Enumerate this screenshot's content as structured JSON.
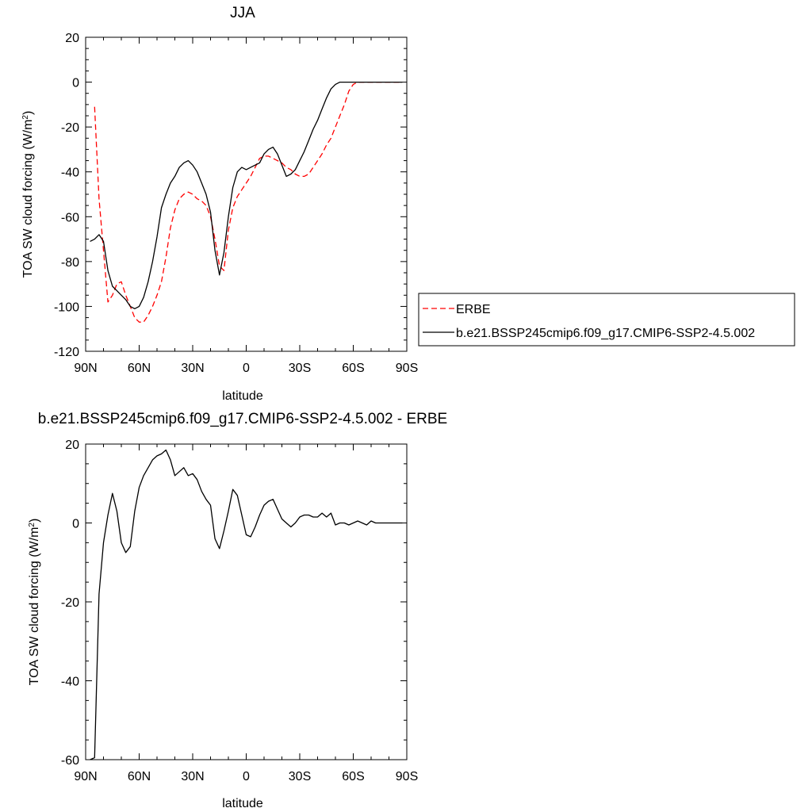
{
  "chart_data": [
    {
      "type": "line",
      "title": "JJA",
      "xlabel": "latitude",
      "ylabel": "TOA SW cloud forcing (W/m",
      "ylabel_sup": "2",
      "ylabel_close": ")",
      "xticks": [
        {
          "lat": 90,
          "label": "90N"
        },
        {
          "lat": 60,
          "label": "60N"
        },
        {
          "lat": 30,
          "label": "30N"
        },
        {
          "lat": 0,
          "label": "0"
        },
        {
          "lat": -30,
          "label": "30S"
        },
        {
          "lat": -60,
          "label": "60S"
        },
        {
          "lat": -90,
          "label": "90S"
        }
      ],
      "xlim": [
        90,
        -90
      ],
      "ylim": [
        -120,
        20
      ],
      "yticks": [
        20,
        0,
        -20,
        -40,
        -60,
        -80,
        -100,
        -120
      ],
      "ytick_labels": [
        "20",
        "0",
        "-20",
        "-40",
        "-60",
        "-80",
        "-100",
        "-120"
      ],
      "grid": false,
      "legend_position": "right",
      "series": [
        {
          "name": "ERBE",
          "color": "#ff0000",
          "dash": "dashed",
          "x": [
            85,
            82.5,
            80,
            77.5,
            75,
            72.5,
            70,
            67.5,
            65,
            62.5,
            60,
            57.5,
            55,
            52.5,
            50,
            47.5,
            45,
            42.5,
            40,
            37.5,
            35,
            32.5,
            30,
            27.5,
            25,
            22.5,
            20,
            17.5,
            15,
            12.5,
            10,
            7.5,
            5,
            2.5,
            0,
            -2.5,
            -5,
            -7.5,
            -10,
            -12.5,
            -15,
            -17.5,
            -20,
            -22.5,
            -25,
            -27.5,
            -30,
            -32.5,
            -35,
            -37.5,
            -40,
            -42.5,
            -45,
            -47.5,
            -50,
            -52.5,
            -55,
            -57.5,
            -60,
            -62.5,
            -65,
            -67.5,
            -70,
            -72.5,
            -75,
            -77.5,
            -80,
            -82.5,
            -85,
            -87.5
          ],
          "y": [
            -11,
            -52,
            -75,
            -98,
            -95,
            -90,
            -89,
            -95,
            -100,
            -105,
            -107,
            -107,
            -104,
            -100,
            -95,
            -89,
            -78,
            -65,
            -57,
            -52,
            -50,
            -49,
            -50,
            -52,
            -53,
            -55,
            -60,
            -70,
            -82,
            -84,
            -66,
            -56,
            -51,
            -48,
            -45,
            -42,
            -38,
            -34,
            -33,
            -33,
            -34,
            -35,
            -36,
            -38,
            -39,
            -41,
            -42,
            -42,
            -41,
            -38,
            -35,
            -32,
            -28,
            -25,
            -20,
            -15,
            -10,
            -4,
            -1,
            0,
            0,
            0,
            0,
            0,
            0,
            0,
            0,
            0,
            0,
            0
          ]
        },
        {
          "name": "b.e21.BSSP245cmip6.f09_g17.CMIP6-SSP2-4.5.002",
          "color": "#000000",
          "dash": "solid",
          "x": [
            87.5,
            85,
            82.5,
            80,
            77.5,
            75,
            72.5,
            70,
            67.5,
            65,
            62.5,
            60,
            57.5,
            55,
            52.5,
            50,
            47.5,
            45,
            42.5,
            40,
            37.5,
            35,
            32.5,
            30,
            27.5,
            25,
            22.5,
            20,
            17.5,
            15,
            12.5,
            10,
            7.5,
            5,
            2.5,
            0,
            -2.5,
            -5,
            -7.5,
            -10,
            -12.5,
            -15,
            -17.5,
            -20,
            -22.5,
            -25,
            -27.5,
            -30,
            -32.5,
            -35,
            -37.5,
            -40,
            -42.5,
            -45,
            -47.5,
            -50,
            -52.5,
            -55,
            -57.5,
            -60,
            -62.5,
            -65,
            -67.5,
            -70,
            -72.5,
            -75,
            -77.5,
            -80,
            -82.5,
            -85,
            -87.5
          ],
          "y": [
            -71,
            -70,
            -68,
            -71,
            -84,
            -91,
            -93,
            -95,
            -97,
            -100,
            -101,
            -100,
            -96,
            -89,
            -80,
            -69,
            -56,
            -50,
            -45,
            -42,
            -38,
            -36,
            -35,
            -37,
            -40,
            -45,
            -50,
            -58,
            -75,
            -86,
            -76,
            -60,
            -47,
            -40,
            -38,
            -39,
            -38,
            -37,
            -36,
            -32,
            -30,
            -29,
            -32,
            -37,
            -42,
            -41,
            -39,
            -35,
            -31,
            -26,
            -21,
            -17,
            -12,
            -7,
            -3,
            -1,
            0,
            0,
            0,
            0,
            0,
            0,
            0,
            0,
            0,
            0,
            0,
            0,
            0,
            0,
            0
          ]
        }
      ]
    },
    {
      "type": "line",
      "title": "b.e21.BSSP245cmip6.f09_g17.CMIP6-SSP2-4.5.002 - ERBE",
      "xlabel": "latitude",
      "ylabel": "TOA SW cloud forcing (W/m",
      "ylabel_sup": "2",
      "ylabel_close": ")",
      "xticks": [
        {
          "lat": 90,
          "label": "90N"
        },
        {
          "lat": 60,
          "label": "60N"
        },
        {
          "lat": 30,
          "label": "30N"
        },
        {
          "lat": 0,
          "label": "0"
        },
        {
          "lat": -30,
          "label": "30S"
        },
        {
          "lat": -60,
          "label": "60S"
        },
        {
          "lat": -90,
          "label": "90S"
        }
      ],
      "xlim": [
        90,
        -90
      ],
      "ylim": [
        -60,
        20
      ],
      "yticks": [
        20,
        0,
        -20,
        -40,
        -60
      ],
      "ytick_labels": [
        "20",
        "0",
        "-20",
        "-40",
        "-60"
      ],
      "grid": false,
      "series": [
        {
          "color": "#000000",
          "dash": "solid",
          "x": [
            87.5,
            85,
            82.5,
            80,
            77.5,
            75,
            72.5,
            70,
            67.5,
            65,
            62.5,
            60,
            57.5,
            55,
            52.5,
            50,
            47.5,
            45,
            42.5,
            40,
            37.5,
            35,
            32.5,
            30,
            27.5,
            25,
            22.5,
            20,
            17.5,
            15,
            12.5,
            10,
            7.5,
            5,
            2.5,
            0,
            -2.5,
            -5,
            -7.5,
            -10,
            -12.5,
            -15,
            -17.5,
            -20,
            -22.5,
            -25,
            -27.5,
            -30,
            -32.5,
            -35,
            -37.5,
            -40,
            -42.5,
            -45,
            -47.5,
            -50,
            -52.5,
            -55,
            -57.5,
            -60,
            -62.5,
            -65,
            -67.5,
            -70,
            -72.5,
            -75,
            -77.5,
            -80,
            -82.5,
            -85,
            -87.5
          ],
          "y": [
            -60,
            -59.5,
            -18,
            -5,
            2,
            7.5,
            3,
            -5,
            -7.5,
            -6,
            3,
            9,
            12,
            14,
            16,
            17,
            17.5,
            18.5,
            16,
            12,
            13,
            14,
            12,
            12.5,
            11,
            8,
            6,
            4.5,
            -4,
            -6.5,
            -2,
            3,
            8.5,
            7,
            2,
            -3,
            -3.5,
            -1,
            2,
            4.5,
            5.5,
            6,
            3.5,
            1,
            0,
            -1,
            0,
            1.5,
            2,
            2,
            1.5,
            1.5,
            2.5,
            1.5,
            2.5,
            -0.5,
            0,
            0,
            -0.5,
            0,
            0.5,
            0,
            -0.5,
            0.5,
            0,
            0,
            0,
            0,
            0,
            0,
            0
          ]
        }
      ]
    }
  ]
}
